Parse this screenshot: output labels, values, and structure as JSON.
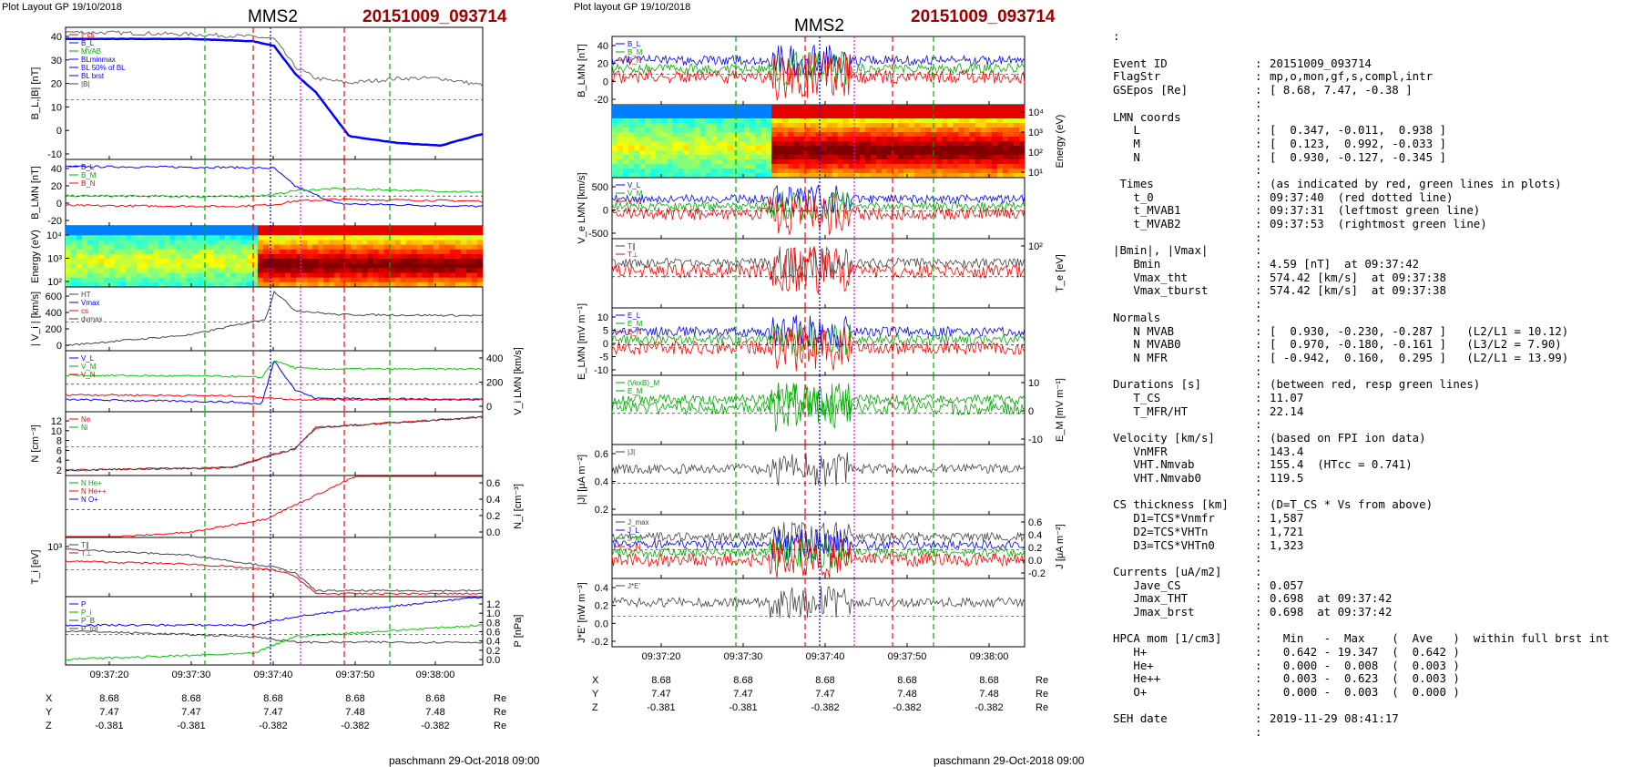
{
  "header": {
    "left_plot_layout": "Plot Layout GP 19/10/2018",
    "mid_plot_layout": "Plot layout GP 19/10/2018",
    "spacecraft": "MMS2",
    "event": "20151009_093714",
    "footer": "paschmann 29-Oct-2018 09:00",
    "colon": ":"
  },
  "chart_data": [
    {
      "type": "line",
      "panel_group": "left",
      "time_ticks": [
        "09:37:20",
        "09:37:30",
        "09:37:40",
        "09:37:50",
        "09:38:00"
      ],
      "position_table": {
        "labels": [
          "X",
          "Y",
          "Z"
        ],
        "unit": "Re",
        "rows": [
          [
            "8.68",
            "8.68",
            "8.68",
            "8.68",
            "8.68"
          ],
          [
            "7.47",
            "7.47",
            "7.47",
            "7.48",
            "7.48"
          ],
          [
            "-0.381",
            "-0.381",
            "-0.382",
            "-0.382",
            "-0.382"
          ]
        ]
      },
      "panels": [
        {
          "ylabel": "B_L,|B| [nT]",
          "yticks": [
            "40",
            "30",
            "20",
            "10",
            "0",
            "-10"
          ],
          "ylim": [
            -15,
            42
          ],
          "legend": [
            "I_cs",
            "B_L",
            "MVAB",
            "BLminmax",
            "BL 50% of BL",
            "BL brst",
            "|B|"
          ],
          "series": [
            {
              "name": "B_L",
              "color": "#0000ff",
              "x": [
                0,
                0.3,
                0.45,
                0.5,
                0.55,
                0.6,
                0.68,
                0.8,
                0.9,
                1
              ],
              "y": [
                37,
                37,
                36,
                34,
                22,
                14,
                -5,
                -8,
                -9,
                -4
              ]
            },
            {
              "name": "|B|",
              "color": "#666666",
              "x": [
                0,
                0.3,
                0.45,
                0.5,
                0.55,
                0.6,
                0.68,
                0.8,
                0.9,
                1
              ],
              "y": [
                40,
                39,
                38,
                37,
                25,
                20,
                18,
                20,
                20,
                17
              ]
            }
          ]
        },
        {
          "ylabel": "B_LMN [nT]",
          "yticks": [
            "40",
            "20",
            "0",
            "-20"
          ],
          "ylim": [
            -30,
            45
          ],
          "legend": [
            "B_L",
            "B_M",
            "B_N"
          ],
          "series": [
            {
              "name": "B_L",
              "color": "#0000ff",
              "x": [
                0,
                0.4,
                0.5,
                0.55,
                0.65,
                1
              ],
              "y": [
                37,
                36,
                35,
                15,
                -5,
                -8
              ]
            },
            {
              "name": "B_M",
              "color": "#00cc00",
              "x": [
                0,
                0.4,
                0.5,
                0.55,
                0.65,
                1
              ],
              "y": [
                4,
                3,
                5,
                10,
                12,
                8
              ]
            },
            {
              "name": "B_N",
              "color": "#ff0000",
              "x": [
                0,
                0.4,
                0.5,
                0.55,
                0.65,
                1
              ],
              "y": [
                -7,
                -8,
                -6,
                -2,
                0,
                -2
              ]
            }
          ]
        },
        {
          "ylabel": "Energy (eV)",
          "yticks": [
            "10⁴",
            "10³",
            "10²"
          ],
          "type": "heatmap"
        },
        {
          "ylabel": "| V_i | [km/s]",
          "yticks": [
            "600",
            "400",
            "200",
            "0"
          ],
          "ylim": [
            0,
            600
          ],
          "legend": [
            "HT",
            "Vmax",
            "cs",
            "dvmax"
          ],
          "series": [
            {
              "name": "HT",
              "color": "#444444",
              "x": [
                0,
                0.3,
                0.42,
                0.48,
                0.5,
                0.55,
                0.65,
                1
              ],
              "y": [
                50,
                150,
                250,
                300,
                560,
                380,
                340,
                330
              ]
            }
          ]
        },
        {
          "ylabel": "V_i LMN [km/s]",
          "yticks_right": [
            "400",
            "200",
            "0"
          ],
          "ylim": [
            -100,
            400
          ],
          "legend": [
            "V_L",
            "V_M",
            "V_N"
          ],
          "series": [
            {
              "name": "V_L",
              "color": "#0000ff",
              "x": [
                0,
                0.4,
                0.47,
                0.5,
                0.55,
                0.6,
                1
              ],
              "y": [
                0,
                -20,
                -40,
                320,
                80,
                10,
                0
              ]
            },
            {
              "name": "V_M",
              "color": "#00cc00",
              "x": [
                0,
                0.4,
                0.47,
                0.5,
                0.55,
                0.6,
                1
              ],
              "y": [
                200,
                190,
                180,
                320,
                260,
                250,
                250
              ]
            },
            {
              "name": "V_N",
              "color": "#ff0000",
              "x": [
                0,
                0.4,
                0.47,
                0.5,
                0.55,
                0.6,
                1
              ],
              "y": [
                40,
                30,
                20,
                10,
                0,
                0,
                0
              ]
            }
          ]
        },
        {
          "ylabel": "N [cm⁻³]",
          "yticks": [
            "12",
            "10",
            "8",
            "6",
            "4",
            "2"
          ],
          "ylim": [
            0,
            12
          ],
          "legend": [
            "Ne",
            "Ni"
          ],
          "series": [
            {
              "name": "Ne",
              "color": "#ff0000",
              "x": [
                0,
                0.4,
                0.46,
                0.5,
                0.55,
                0.6,
                0.8,
                1
              ],
              "y": [
                1,
                1.5,
                3,
                4,
                5,
                9,
                10,
                11
              ]
            },
            {
              "name": "Ni",
              "color": "#444444",
              "x": [
                0,
                0.4,
                0.46,
                0.5,
                0.55,
                0.6,
                0.8,
                1
              ],
              "y": [
                1,
                1.5,
                3,
                4,
                5,
                9,
                10,
                11
              ]
            }
          ]
        },
        {
          "ylabel": "N_i [cm⁻³]",
          "yticks_right": [
            "0.6",
            "0.4",
            "0.2",
            "0.0"
          ],
          "ylim": [
            0,
            0.6
          ],
          "legend": [
            "N He+",
            "N He++",
            "N O+"
          ],
          "series": [
            {
              "name": "N He++",
              "color": "#ff0000",
              "x": [
                0.1,
                0.3,
                0.48,
                0.7
              ],
              "y": [
                0,
                0.05,
                0.18,
                0.6
              ]
            }
          ]
        },
        {
          "ylabel": "T_i [eV]",
          "yticks": [
            "10³"
          ],
          "legend": [
            "T∥",
            "T⊥"
          ],
          "series": [
            {
              "name": "T∥",
              "color": "#444444",
              "x": [
                0,
                0.3,
                0.5,
                0.55,
                0.6,
                1
              ],
              "y": [
                0.8,
                0.7,
                0.5,
                0.4,
                0.1,
                0.1
              ]
            },
            {
              "name": "T⊥",
              "color": "#ff0000",
              "x": [
                0,
                0.3,
                0.5,
                0.55,
                0.6,
                1
              ],
              "y": [
                0.6,
                0.55,
                0.45,
                0.35,
                0.05,
                0.05
              ]
            }
          ]
        },
        {
          "ylabel": "P [nPa]",
          "yticks_right": [
            "1.2",
            "1.0",
            "0.8",
            "0.6",
            "0.4",
            "0.2",
            "0.0"
          ],
          "ylim": [
            0,
            1.2
          ],
          "legend": [
            "P",
            "P_i",
            "P_B",
            "P_tot"
          ],
          "series": [
            {
              "name": "P",
              "color": "#0000ff",
              "x": [
                0,
                0.45,
                0.55,
                1
              ],
              "y": [
                0.7,
                0.7,
                0.85,
                1.2
              ]
            },
            {
              "name": "P_tot",
              "color": "#444444",
              "x": [
                0,
                0.45,
                0.55,
                1
              ],
              "y": [
                0.6,
                0.5,
                0.4,
                0.4
              ]
            },
            {
              "name": "P_i",
              "color": "#00cc00",
              "x": [
                0,
                0.45,
                0.55,
                1
              ],
              "y": [
                0.1,
                0.2,
                0.5,
                0.7
              ]
            }
          ]
        }
      ]
    },
    {
      "type": "line",
      "panel_group": "middle",
      "time_ticks": [
        "09:37:20",
        "09:37:30",
        "09:37:40",
        "09:37:50",
        "09:38:00"
      ],
      "position_table": {
        "labels": [
          "X",
          "Y",
          "Z"
        ],
        "unit": "Re",
        "rows": [
          [
            "8.68",
            "8.68",
            "8.68",
            "8.68",
            "8.68"
          ],
          [
            "7.47",
            "7.47",
            "7.47",
            "7.48",
            "7.48"
          ],
          [
            "-0.381",
            "-0.381",
            "-0.382",
            "-0.382",
            "-0.382"
          ]
        ]
      },
      "panels": [
        {
          "ylabel": "B_LMN [nT]",
          "yticks": [
            "40",
            "20",
            "0",
            "-20"
          ],
          "legend": [
            "B_L",
            "B_M",
            "B_N"
          ]
        },
        {
          "ylabel": "Energy (eV)",
          "yticks_right": [
            "10⁴",
            "10³",
            "10²",
            "10¹"
          ],
          "type": "heatmap"
        },
        {
          "ylabel": "V_e LMN [km/s]",
          "yticks": [
            "500",
            "0",
            "-500"
          ],
          "legend": [
            "V_L",
            "V_M",
            "V_N"
          ]
        },
        {
          "ylabel": "T_e [eV]",
          "yticks_right": [
            "10²"
          ],
          "legend": [
            "T∥",
            "T⊥"
          ]
        },
        {
          "ylabel": "E_LMN [mV m⁻¹]",
          "yticks": [
            "10",
            "5",
            "0",
            "-5",
            "-10"
          ],
          "legend": [
            "E_L",
            "E_M",
            "E_N"
          ]
        },
        {
          "ylabel": "E_M [mV m⁻¹]",
          "yticks_right": [
            "10",
            "0",
            "-10"
          ],
          "legend": [
            "(VexB)_M",
            "E_M"
          ]
        },
        {
          "ylabel": "|J| [μA m⁻²]",
          "yticks": [
            "0.6",
            "0.4",
            "0.2"
          ],
          "legend": [
            "|J|"
          ]
        },
        {
          "ylabel": "J [μA m⁻²]",
          "yticks_right": [
            "0.6",
            "0.4",
            "0.2",
            "0.0",
            "-0.2"
          ],
          "legend": [
            "J_max",
            "J_L",
            "J_M",
            "J_N"
          ]
        },
        {
          "ylabel": "J*E' [nW m⁻³]",
          "yticks": [
            "0.4",
            "0.2",
            "0.0",
            "-0.2"
          ],
          "legend": [
            "J*E'"
          ]
        }
      ]
    }
  ],
  "info": [
    [
      "Event ID",
      "20151009_093714"
    ],
    [
      "FlagStr",
      "mp,o,mon,gf,s,compl,intr"
    ],
    [
      "GSEpos [Re]",
      "[ 8.68, 7.47, -0.38 ]"
    ],
    [
      "",
      ""
    ],
    [
      "LMN coords",
      ""
    ],
    [
      "   L",
      "[  0.347, -0.011,  0.938 ]"
    ],
    [
      "   M",
      "[  0.123,  0.992, -0.033 ]"
    ],
    [
      "   N",
      "[  0.930, -0.127, -0.345 ]"
    ],
    [
      "",
      ""
    ],
    [
      " Times",
      "(as indicated by red, green lines in plots)"
    ],
    [
      "   t_0",
      "09:37:40  (red dotted line)"
    ],
    [
      "   t_MVAB1",
      "09:37:31  (leftmost green line)"
    ],
    [
      "   t_MVAB2",
      "09:37:53  (rightmost green line)"
    ],
    [
      "",
      ""
    ],
    [
      "|Bmin|, |Vmax|",
      ""
    ],
    [
      "   Bmin",
      "4.59 [nT]  at 09:37:42"
    ],
    [
      "   Vmax_tht",
      "574.42 [km/s]  at 09:37:38"
    ],
    [
      "   Vmax_tburst",
      "574.42 [km/s]  at 09:37:38"
    ],
    [
      "",
      ""
    ],
    [
      "Normals",
      ""
    ],
    [
      "   N MVAB",
      "[  0.930, -0.230, -0.287 ]   (L2/L1 = 10.12)"
    ],
    [
      "   N MVAB0",
      "[  0.970, -0.180, -0.161 ]   (L3/L2 = 7.90)"
    ],
    [
      "   N MFR",
      "[ -0.942,  0.160,  0.295 ]   (L2/L1 = 13.99)"
    ],
    [
      "",
      ""
    ],
    [
      "Durations [s]",
      "(between red, resp green lines)"
    ],
    [
      "   T_CS",
      "11.07"
    ],
    [
      "   T_MFR/HT",
      "22.14"
    ],
    [
      "",
      ""
    ],
    [
      "Velocity [km/s]",
      "(based on FPI ion data)"
    ],
    [
      "   VnMFR",
      "143.4"
    ],
    [
      "   VHT.Nmvab",
      "155.4  (HTcc = 0.741)"
    ],
    [
      "   VHT.Nmvab0",
      "119.5"
    ],
    [
      "",
      ""
    ],
    [
      "CS thickness [km]",
      "(D=T_CS * Vs from above)"
    ],
    [
      "   D1=TCS*Vnmfr",
      "1,587"
    ],
    [
      "   D2=TCS*VHTn",
      "1,721"
    ],
    [
      "   D3=TCS*VHTn0",
      "1,323"
    ],
    [
      "",
      ""
    ],
    [
      "Currents [uA/m2]",
      ""
    ],
    [
      "   Jave_CS",
      "0.057"
    ],
    [
      "   Jmax_THT",
      "0.698  at 09:37:42"
    ],
    [
      "   Jmax_brst",
      "0.698  at 09:37:42"
    ],
    [
      "",
      ""
    ],
    [
      "HPCA mom [1/cm3]",
      "  Min   -  Max    (  Ave   )  within full brst int"
    ],
    [
      "   H+",
      "  0.642 - 19.347  (  0.642 )"
    ],
    [
      "   He+",
      "  0.000 -  0.008  (  0.003 )"
    ],
    [
      "   He++",
      "  0.003 -  0.623  (  0.003 )"
    ],
    [
      "   O+",
      "  0.000 -  0.003  (  0.000 )"
    ],
    [
      "",
      ""
    ],
    [
      "SEH date",
      "2019-11-29 08:41:17"
    ],
    [
      "",
      ""
    ]
  ]
}
